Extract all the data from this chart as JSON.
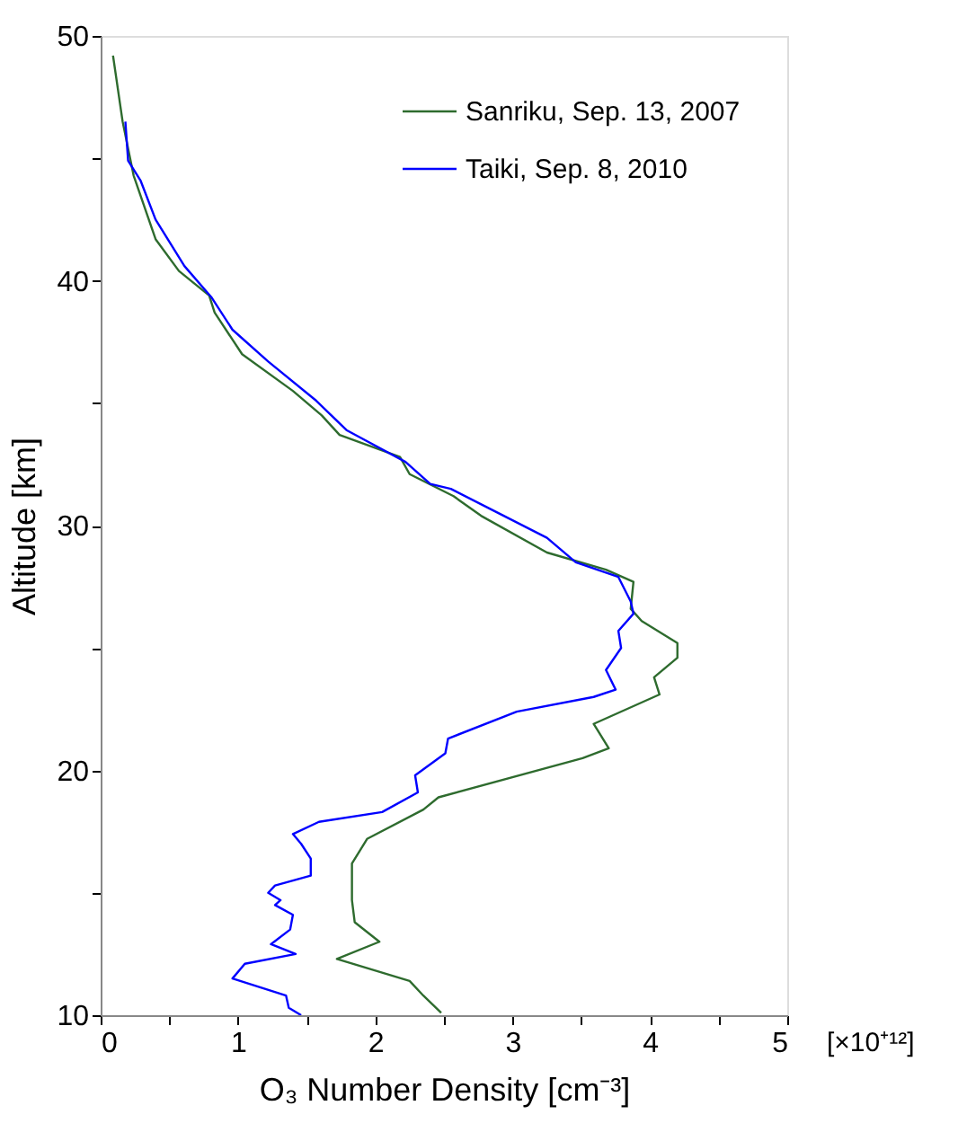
{
  "chart_data": {
    "type": "line",
    "xlabel": "O₃ Number Density [cm⁻³]",
    "ylabel": "Altitude [km]",
    "annotations": [
      "[×10⁺¹²]"
    ],
    "xlim": [
      0,
      5
    ],
    "ylim": [
      10,
      50
    ],
    "xticks": [
      0,
      {
        "value": 0.5,
        "label": null
      },
      1,
      {
        "value": 1.5,
        "label": null
      },
      2,
      {
        "value": 2.5,
        "label": null
      },
      3,
      {
        "value": 3.5,
        "label": null
      },
      4,
      {
        "value": 4.5,
        "label": null
      },
      5
    ],
    "yticks": [
      10,
      {
        "value": 15,
        "label": null
      },
      20,
      {
        "value": 25,
        "label": null
      },
      30,
      {
        "value": 35,
        "label": null
      },
      40,
      {
        "value": 45,
        "label": null
      },
      50
    ],
    "grid": false,
    "legend": "top right",
    "marker": "none",
    "line_style": "solid",
    "series": [
      {
        "name": "Sanriku, Sep. 13, 2007",
        "color": "#2e6b2e",
        "x": [
          0.09,
          0.16,
          0.24,
          0.4,
          0.57,
          0.79,
          0.83,
          1.03,
          1.4,
          1.61,
          1.74,
          2.18,
          2.25,
          2.57,
          2.77,
          3.25,
          3.68,
          3.88,
          3.86,
          3.94,
          4.2,
          4.2,
          4.03,
          4.07,
          3.59,
          3.7,
          3.51,
          2.46,
          2.35,
          1.94,
          1.83,
          1.83,
          1.85,
          2.03,
          1.72,
          2.25,
          2.35,
          2.48
        ],
        "values": [
          49.2,
          46.5,
          44.3,
          41.7,
          40.4,
          39.4,
          38.7,
          37.0,
          35.5,
          34.5,
          33.7,
          32.8,
          32.1,
          31.2,
          30.4,
          28.9,
          28.2,
          27.7,
          26.6,
          26.1,
          25.2,
          24.6,
          23.8,
          23.1,
          21.9,
          20.9,
          20.5,
          18.9,
          18.4,
          17.2,
          16.2,
          14.7,
          13.8,
          13.0,
          12.3,
          11.4,
          10.8,
          10.1
        ]
      },
      {
        "name": "Taiki, Sep. 8, 2010",
        "color": "#0000ff",
        "x": [
          0.18,
          0.2,
          0.29,
          0.4,
          0.61,
          0.81,
          0.96,
          1.22,
          1.57,
          1.79,
          2.22,
          2.4,
          2.55,
          2.9,
          3.25,
          3.46,
          3.77,
          3.86,
          3.88,
          3.77,
          3.79,
          3.68,
          3.75,
          3.59,
          3.03,
          2.53,
          2.51,
          2.29,
          2.31,
          2.05,
          1.59,
          1.4,
          1.46,
          1.53,
          1.53,
          1.27,
          1.22,
          1.31,
          1.27,
          1.4,
          1.38,
          1.24,
          1.42,
          1.05,
          0.96,
          1.35,
          1.37,
          1.46
        ],
        "values": [
          46.5,
          44.9,
          44.1,
          42.5,
          40.6,
          39.3,
          38.0,
          36.7,
          35.1,
          33.9,
          32.6,
          31.7,
          31.5,
          30.5,
          29.5,
          28.5,
          27.9,
          26.9,
          26.4,
          25.7,
          25.0,
          24.1,
          23.3,
          23.0,
          22.4,
          21.3,
          20.7,
          19.8,
          19.1,
          18.3,
          17.9,
          17.4,
          17.0,
          16.4,
          15.7,
          15.3,
          15.0,
          14.7,
          14.5,
          14.1,
          13.5,
          12.9,
          12.5,
          12.1,
          11.5,
          10.8,
          10.3,
          10.0
        ]
      }
    ]
  }
}
